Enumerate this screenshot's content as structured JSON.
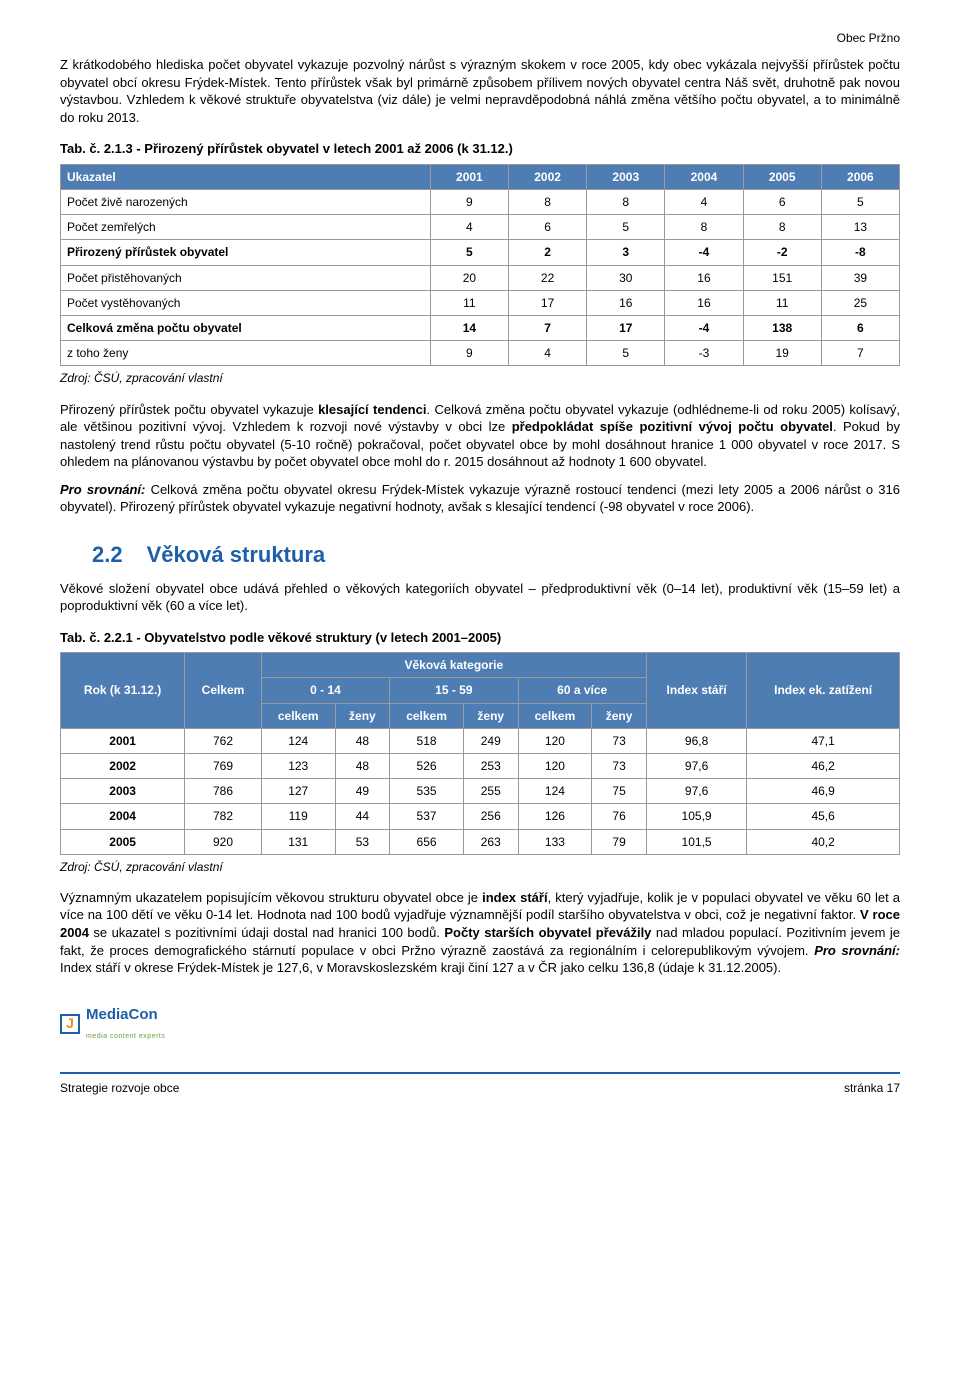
{
  "header": {
    "right": "Obec Pržno"
  },
  "para1": "Z krátkodobého hlediska počet obyvatel vykazuje pozvolný nárůst s výrazným skokem v roce 2005, kdy obec vykázala nejvyšší přírůstek počtu obyvatel obcí okresu Frýdek-Místek. Tento přírůstek však byl primárně způsobem přílivem nových obyvatel centra Náš svět, druhotně pak novou výstavbou. Vzhledem k věkové struktuře obyvatelstva (viz dále) je velmi nepravděpodobná náhlá změna většího počtu obyvatel, a to minimálně do roku 2013.",
  "table1": {
    "title": "Tab. č. 2.1.3 - Přirozený přírůstek obyvatel v letech 2001 až 2006 (k 31.12.)",
    "header": [
      "Ukazatel",
      "2001",
      "2002",
      "2003",
      "2004",
      "2005",
      "2006"
    ],
    "rows": [
      {
        "label": "Počet živě narozených",
        "cells": [
          "9",
          "8",
          "8",
          "4",
          "6",
          "5"
        ],
        "bold": false
      },
      {
        "label": "Počet zemřelých",
        "cells": [
          "4",
          "6",
          "5",
          "8",
          "8",
          "13"
        ],
        "bold": false
      },
      {
        "label": "Přirozený přírůstek obyvatel",
        "cells": [
          "5",
          "2",
          "3",
          "-4",
          "-2",
          "-8"
        ],
        "bold": true
      },
      {
        "label": "Počet přistěhovaných",
        "cells": [
          "20",
          "22",
          "30",
          "16",
          "151",
          "39"
        ],
        "bold": false
      },
      {
        "label": "Počet vystěhovaných",
        "cells": [
          "11",
          "17",
          "16",
          "16",
          "11",
          "25"
        ],
        "bold": false
      },
      {
        "label": "Celková změna počtu obyvatel",
        "cells": [
          "14",
          "7",
          "17",
          "-4",
          "138",
          "6"
        ],
        "bold": true
      },
      {
        "label": "z toho ženy",
        "cells": [
          "9",
          "4",
          "5",
          "-3",
          "19",
          "7"
        ],
        "bold": false
      }
    ],
    "source": "Zdroj: ČSÚ, zpracování vlastní"
  },
  "para2_a": "Přirozený přírůstek počtu obyvatel vykazuje ",
  "para2_b": "klesající tendenci",
  "para2_c": ". Celková změna počtu obyvatel vykazuje (odhlédneme-li od roku 2005) kolísavý, ale většinou pozitivní vývoj. Vzhledem k rozvoji nové výstavby v obci lze ",
  "para2_d": "předpokládat spíše pozitivní vývoj počtu obyvatel",
  "para2_e": ". Pokud by nastolený trend růstu počtu obyvatel (5-10 ročně) pokračoval, počet obyvatel obce by mohl dosáhnout hranice 1 000 obyvatel v roce 2017. S ohledem na plánovanou výstavbu by počet obyvatel obce mohl do r. 2015 dosáhnout až hodnoty 1 600 obyvatel.",
  "para3_a": "Pro srovnání:",
  "para3_b": " Celková změna počtu obyvatel okresu Frýdek-Místek vykazuje výrazně rostoucí tendenci (mezi lety 2005 a 2006 nárůst o 316 obyvatel). Přirozený přírůstek obyvatel vykazuje negativní hodnoty, avšak s klesající tendencí (-98 obyvatel v roce 2006).",
  "section": {
    "num": "2.2",
    "title": "Věková struktura"
  },
  "para4": "Věkové složení obyvatel obce udává přehled o věkových kategoriích obyvatel – předproduktivní věk (0–14 let), produktivní věk (15–59 let) a poproduktivní věk (60 a více let).",
  "table2": {
    "title": "Tab. č. 2.2.1 - Obyvatelstvo podle věkové struktury (v letech 2001–2005)",
    "h1": {
      "rok": "Rok (k 31.12.)",
      "celkem": "Celkem",
      "vek": "Věková kategorie",
      "istari": "Index stáří",
      "iek": "Index ek. zatížení"
    },
    "h2": {
      "g1": "0 - 14",
      "g2": "15 - 59",
      "g3": "60 a více"
    },
    "h3": [
      "celkem",
      "ženy",
      "celkem",
      "ženy",
      "celkem",
      "ženy"
    ],
    "rows": [
      {
        "year": "2001",
        "cells": [
          "762",
          "124",
          "48",
          "518",
          "249",
          "120",
          "73",
          "96,8",
          "47,1"
        ]
      },
      {
        "year": "2002",
        "cells": [
          "769",
          "123",
          "48",
          "526",
          "253",
          "120",
          "73",
          "97,6",
          "46,2"
        ]
      },
      {
        "year": "2003",
        "cells": [
          "786",
          "127",
          "49",
          "535",
          "255",
          "124",
          "75",
          "97,6",
          "46,9"
        ]
      },
      {
        "year": "2004",
        "cells": [
          "782",
          "119",
          "44",
          "537",
          "256",
          "126",
          "76",
          "105,9",
          "45,6"
        ]
      },
      {
        "year": "2005",
        "cells": [
          "920",
          "131",
          "53",
          "656",
          "263",
          "133",
          "79",
          "101,5",
          "40,2"
        ]
      }
    ],
    "source": "Zdroj: ČSÚ, zpracování vlastní"
  },
  "para5_a": "Významným ukazatelem popisujícím věkovou strukturu obyvatel obce je ",
  "para5_b": "index stáří",
  "para5_c": ", který vyjadřuje, kolik je v populaci obyvatel ve věku 60 let a více na 100 dětí ve věku 0-14 let. Hodnota nad 100 bodů vyjadřuje významnější podíl staršího obyvatelstva v obci, což je negativní faktor. ",
  "para5_d": "V roce 2004",
  "para5_e": " se ukazatel s pozitivními údaji dostal nad hranici 100 bodů. ",
  "para5_f": "Počty starších obyvatel převážily",
  "para5_g": " nad mladou populací. Pozitivním jevem je fakt, že proces demografického stárnutí populace v obci Pržno výrazně zaostává za regionálním i celorepublikovým vývojem. ",
  "para5_h": "Pro srovnání:",
  "para5_i": " Index stáří v okrese Frýdek-Místek je 127,6, v Moravskoslezském kraji činí 127 a v ČR jako celku 136,8 (údaje k 31.12.2005).",
  "footer": {
    "logo_text": "MediaCon",
    "logo_sub": "media content experts",
    "left": "Strategie rozvoje obce",
    "right": "stránka 17"
  }
}
